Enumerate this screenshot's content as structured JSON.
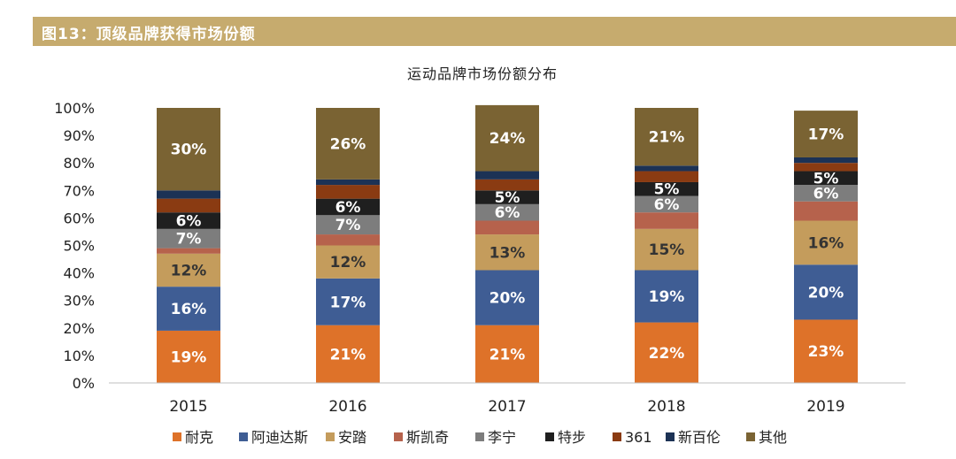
{
  "header": {
    "title": "图13：顶级品牌获得市场份额"
  },
  "chart_data": {
    "type": "bar",
    "stacked": true,
    "title": "运动品牌市场份额分布",
    "xlabel": "",
    "ylabel": "",
    "ylim": [
      0,
      100
    ],
    "y_ticks": [
      "0%",
      "10%",
      "20%",
      "30%",
      "40%",
      "50%",
      "60%",
      "70%",
      "80%",
      "90%",
      "100%"
    ],
    "categories": [
      "2015",
      "2016",
      "2017",
      "2018",
      "2019"
    ],
    "legend_position": "bottom",
    "series": [
      {
        "name": "耐克",
        "color": "#de7229",
        "values": [
          19,
          21,
          21,
          22,
          23
        ],
        "labels": [
          "19%",
          "21%",
          "21%",
          "22%",
          "23%"
        ]
      },
      {
        "name": "阿迪达斯",
        "color": "#3f5d94",
        "values": [
          16,
          17,
          20,
          19,
          20
        ],
        "labels": [
          "16%",
          "17%",
          "20%",
          "19%",
          "20%"
        ]
      },
      {
        "name": "安踏",
        "color": "#c49c5c",
        "values": [
          12,
          12,
          13,
          15,
          16
        ],
        "labels": [
          "12%",
          "12%",
          "13%",
          "15%",
          "16%"
        ]
      },
      {
        "name": "斯凯奇",
        "color": "#b6624c",
        "values": [
          2,
          4,
          5,
          6,
          7
        ],
        "labels": [
          "",
          "",
          "",
          "",
          ""
        ]
      },
      {
        "name": "李宁",
        "color": "#7d7d7d",
        "values": [
          7,
          7,
          6,
          6,
          6
        ],
        "labels": [
          "7%",
          "7%",
          "6%",
          "6%",
          "6%"
        ]
      },
      {
        "name": "特步",
        "color": "#1f1f1f",
        "values": [
          6,
          6,
          5,
          5,
          5
        ],
        "labels": [
          "6%",
          "6%",
          "5%",
          "5%",
          "5%"
        ]
      },
      {
        "name": "361",
        "color": "#8a3b12",
        "values": [
          5,
          5,
          4,
          4,
          3
        ],
        "labels": [
          "",
          "",
          "",
          "",
          ""
        ]
      },
      {
        "name": "新百伦",
        "color": "#1c3255",
        "values": [
          3,
          2,
          3,
          2,
          2
        ],
        "labels": [
          "",
          "",
          "",
          "",
          ""
        ]
      },
      {
        "name": "其他",
        "color": "#7a6333",
        "values": [
          30,
          26,
          24,
          21,
          17
        ],
        "labels": [
          "30%",
          "26%",
          "24%",
          "21%",
          "17%"
        ]
      }
    ]
  }
}
